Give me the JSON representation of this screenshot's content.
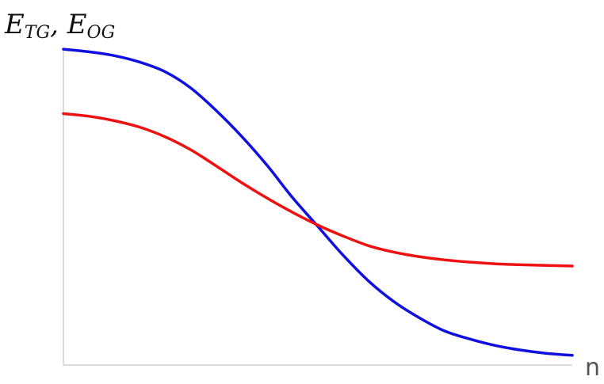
{
  "chart_data": {
    "type": "line",
    "ylabel": {
      "parts": [
        {
          "main": "E",
          "sub": "TG"
        },
        {
          "main": "E",
          "sub": "OG"
        }
      ],
      "separator": ", "
    },
    "xlabel": "n",
    "grid": false,
    "legend": "none",
    "xlim": [
      0,
      1
    ],
    "ylim": [
      0,
      1
    ],
    "x": [
      0,
      0.05,
      0.1,
      0.15,
      0.2,
      0.25,
      0.3,
      0.35,
      0.4,
      0.45,
      0.5,
      0.55,
      0.6,
      0.65,
      0.7,
      0.75,
      0.8,
      0.85,
      0.9,
      0.95,
      1
    ],
    "series": [
      {
        "color": "#1010e0",
        "values": [
          0.98,
          0.972,
          0.96,
          0.94,
          0.91,
          0.86,
          0.79,
          0.71,
          0.62,
          0.52,
          0.43,
          0.34,
          0.26,
          0.196,
          0.146,
          0.105,
          0.08,
          0.06,
          0.046,
          0.036,
          0.03
        ]
      },
      {
        "color": "#ee1111",
        "values": [
          0.78,
          0.772,
          0.758,
          0.738,
          0.708,
          0.668,
          0.618,
          0.566,
          0.518,
          0.474,
          0.434,
          0.4,
          0.37,
          0.35,
          0.336,
          0.326,
          0.319,
          0.314,
          0.311,
          0.309,
          0.307
        ]
      }
    ]
  }
}
